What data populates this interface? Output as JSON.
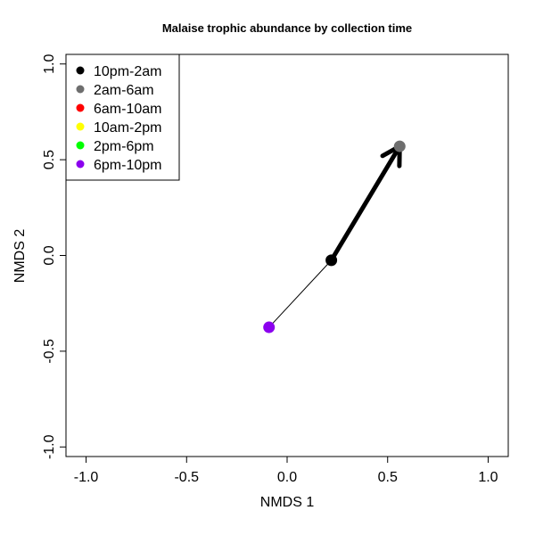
{
  "chart_data": {
    "type": "scatter",
    "title": "Malaise trophic abundance by collection time",
    "xlabel": "NMDS 1",
    "ylabel": "NMDS 2",
    "xlim": [
      -1.1,
      1.1
    ],
    "ylim": [
      -1.05,
      1.05
    ],
    "xticks": [
      -1.0,
      -0.5,
      0.0,
      0.5,
      1.0
    ],
    "xtick_labels": [
      "-1.0",
      "-0.5",
      "0.0",
      "0.5",
      "1.0"
    ],
    "yticks": [
      -1.0,
      -0.5,
      0.0,
      0.5,
      1.0
    ],
    "ytick_labels": [
      "-1.0",
      "-0.5",
      "0.0",
      "0.5",
      "1.0"
    ],
    "grid": false,
    "legend_position": "top-left",
    "legend": [
      {
        "label": "10pm-2am",
        "color": "#000000"
      },
      {
        "label": "2am-6am",
        "color": "#6e6e6e"
      },
      {
        "label": "6am-10am",
        "color": "#ff0000"
      },
      {
        "label": "10am-2pm",
        "color": "#ffff00"
      },
      {
        "label": "2pm-6pm",
        "color": "#00ff00"
      },
      {
        "label": "6pm-10pm",
        "color": "#8b00ee"
      }
    ],
    "points": [
      {
        "series": "6pm-10pm",
        "x": -0.09,
        "y": -0.375,
        "color": "#8b00ee"
      },
      {
        "series": "10pm-2am",
        "x": 0.22,
        "y": -0.025,
        "color": "#000000"
      },
      {
        "series": "2am-6am",
        "x": 0.56,
        "y": 0.57,
        "color": "#6e6e6e"
      }
    ],
    "segments": [
      {
        "from": [
          -0.09,
          -0.375
        ],
        "to": [
          0.22,
          -0.025
        ],
        "style": "thin"
      },
      {
        "from": [
          0.22,
          -0.025
        ],
        "to": [
          0.56,
          0.57
        ],
        "style": "thick-arrow"
      }
    ]
  }
}
